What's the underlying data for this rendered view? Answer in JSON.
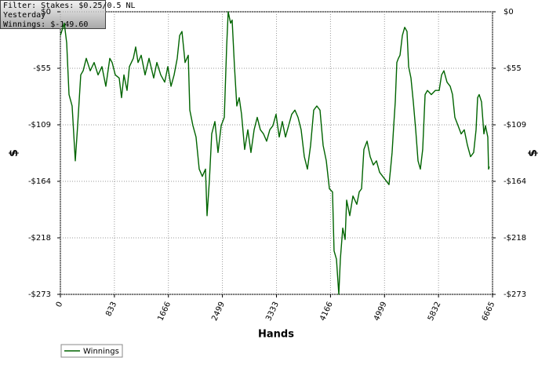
{
  "chart_data": {
    "type": "line",
    "annotations": [
      "Filter: Stakes: $0.25/0.5 NL",
      "Yesterday",
      "Winnings: $-149.60"
    ],
    "xlabel": "Hands",
    "ylabel": "$",
    "xlim": [
      0,
      6665
    ],
    "xticks": [
      0,
      833,
      1666,
      2499,
      3333,
      4166,
      4999,
      5832,
      6665
    ],
    "ylim": [
      -273,
      0
    ],
    "yticks": [
      {
        "value": 0,
        "label": "$0"
      },
      {
        "value": -54.6,
        "label": "-$55"
      },
      {
        "value": -109.2,
        "label": "-$109"
      },
      {
        "value": -163.8,
        "label": "-$164"
      },
      {
        "value": -218.4,
        "label": "-$218"
      },
      {
        "value": -273,
        "label": "-$273"
      }
    ],
    "mirror_y_axis": true,
    "grid": true,
    "legend": "bottom-left",
    "x": [
      0,
      60,
      97,
      133,
      181,
      230,
      266,
      314,
      351,
      399,
      460,
      520,
      581,
      641,
      701,
      762,
      798,
      847,
      907,
      943,
      980,
      1028,
      1064,
      1125,
      1161,
      1198,
      1246,
      1306,
      1367,
      1439,
      1488,
      1548,
      1609,
      1657,
      1706,
      1754,
      1802,
      1839,
      1875,
      1923,
      1972,
      1996,
      2044,
      2092,
      2141,
      2189,
      2238,
      2262,
      2298,
      2334,
      2383,
      2431,
      2480,
      2528,
      2564,
      2588,
      2625,
      2649,
      2685,
      2721,
      2758,
      2794,
      2842,
      2891,
      2939,
      2988,
      3036,
      3084,
      3133,
      3181,
      3230,
      3278,
      3326,
      3375,
      3423,
      3472,
      3520,
      3568,
      3617,
      3665,
      3713,
      3762,
      3810,
      3859,
      3907,
      3955,
      4004,
      4052,
      4101,
      4149,
      4197,
      4221,
      4258,
      4294,
      4318,
      4355,
      4391,
      4415,
      4463,
      4512,
      4572,
      4609,
      4645,
      4681,
      4730,
      4778,
      4826,
      4875,
      4923,
      4971,
      5020,
      5068,
      5092,
      5116,
      5141,
      5165,
      5189,
      5213,
      5238,
      5274,
      5310,
      5346,
      5371,
      5407,
      5443,
      5480,
      5516,
      5552,
      5588,
      5625,
      5661,
      5721,
      5782,
      5842,
      5879,
      5915,
      5963,
      6012,
      6048,
      6084,
      6133,
      6181,
      6229,
      6278,
      6326,
      6374,
      6411,
      6435,
      6459,
      6495,
      6532,
      6556,
      6592,
      6604,
      6616
    ],
    "series": [
      {
        "name": "Winnings",
        "color": "#006400",
        "values": [
          -23,
          -11,
          -30,
          -80,
          -91,
          -144,
          -110,
          -61,
          -57,
          -45,
          -57,
          -49,
          -61,
          -53,
          -72,
          -45,
          -49,
          -61,
          -64,
          -83,
          -61,
          -76,
          -53,
          -45,
          -34,
          -49,
          -42,
          -61,
          -45,
          -64,
          -49,
          -61,
          -68,
          -53,
          -72,
          -61,
          -45,
          -23,
          -19,
          -49,
          -42,
          -95,
          -110,
          -121,
          -152,
          -159,
          -152,
          -197,
          -163,
          -118,
          -106,
          -136,
          -110,
          -102,
          -34,
          0,
          -11,
          -8,
          -53,
          -91,
          -83,
          -99,
          -133,
          -114,
          -136,
          -114,
          -102,
          -114,
          -118,
          -125,
          -114,
          -110,
          -99,
          -121,
          -106,
          -121,
          -110,
          -99,
          -95,
          -102,
          -114,
          -140,
          -152,
          -129,
          -95,
          -91,
          -95,
          -129,
          -144,
          -171,
          -174,
          -231,
          -239,
          -273,
          -239,
          -209,
          -220,
          -182,
          -197,
          -178,
          -186,
          -174,
          -171,
          -133,
          -125,
          -140,
          -148,
          -144,
          -155,
          -159,
          -163,
          -167,
          -152,
          -136,
          -110,
          -87,
          -49,
          -45,
          -42,
          -23,
          -15,
          -19,
          -53,
          -64,
          -87,
          -114,
          -144,
          -152,
          -133,
          -80,
          -76,
          -80,
          -76,
          -76,
          -61,
          -57,
          -68,
          -72,
          -80,
          -102,
          -110,
          -118,
          -114,
          -129,
          -140,
          -136,
          -114,
          -83,
          -80,
          -87,
          -118,
          -110,
          -121,
          -152,
          -149.6
        ]
      }
    ]
  }
}
